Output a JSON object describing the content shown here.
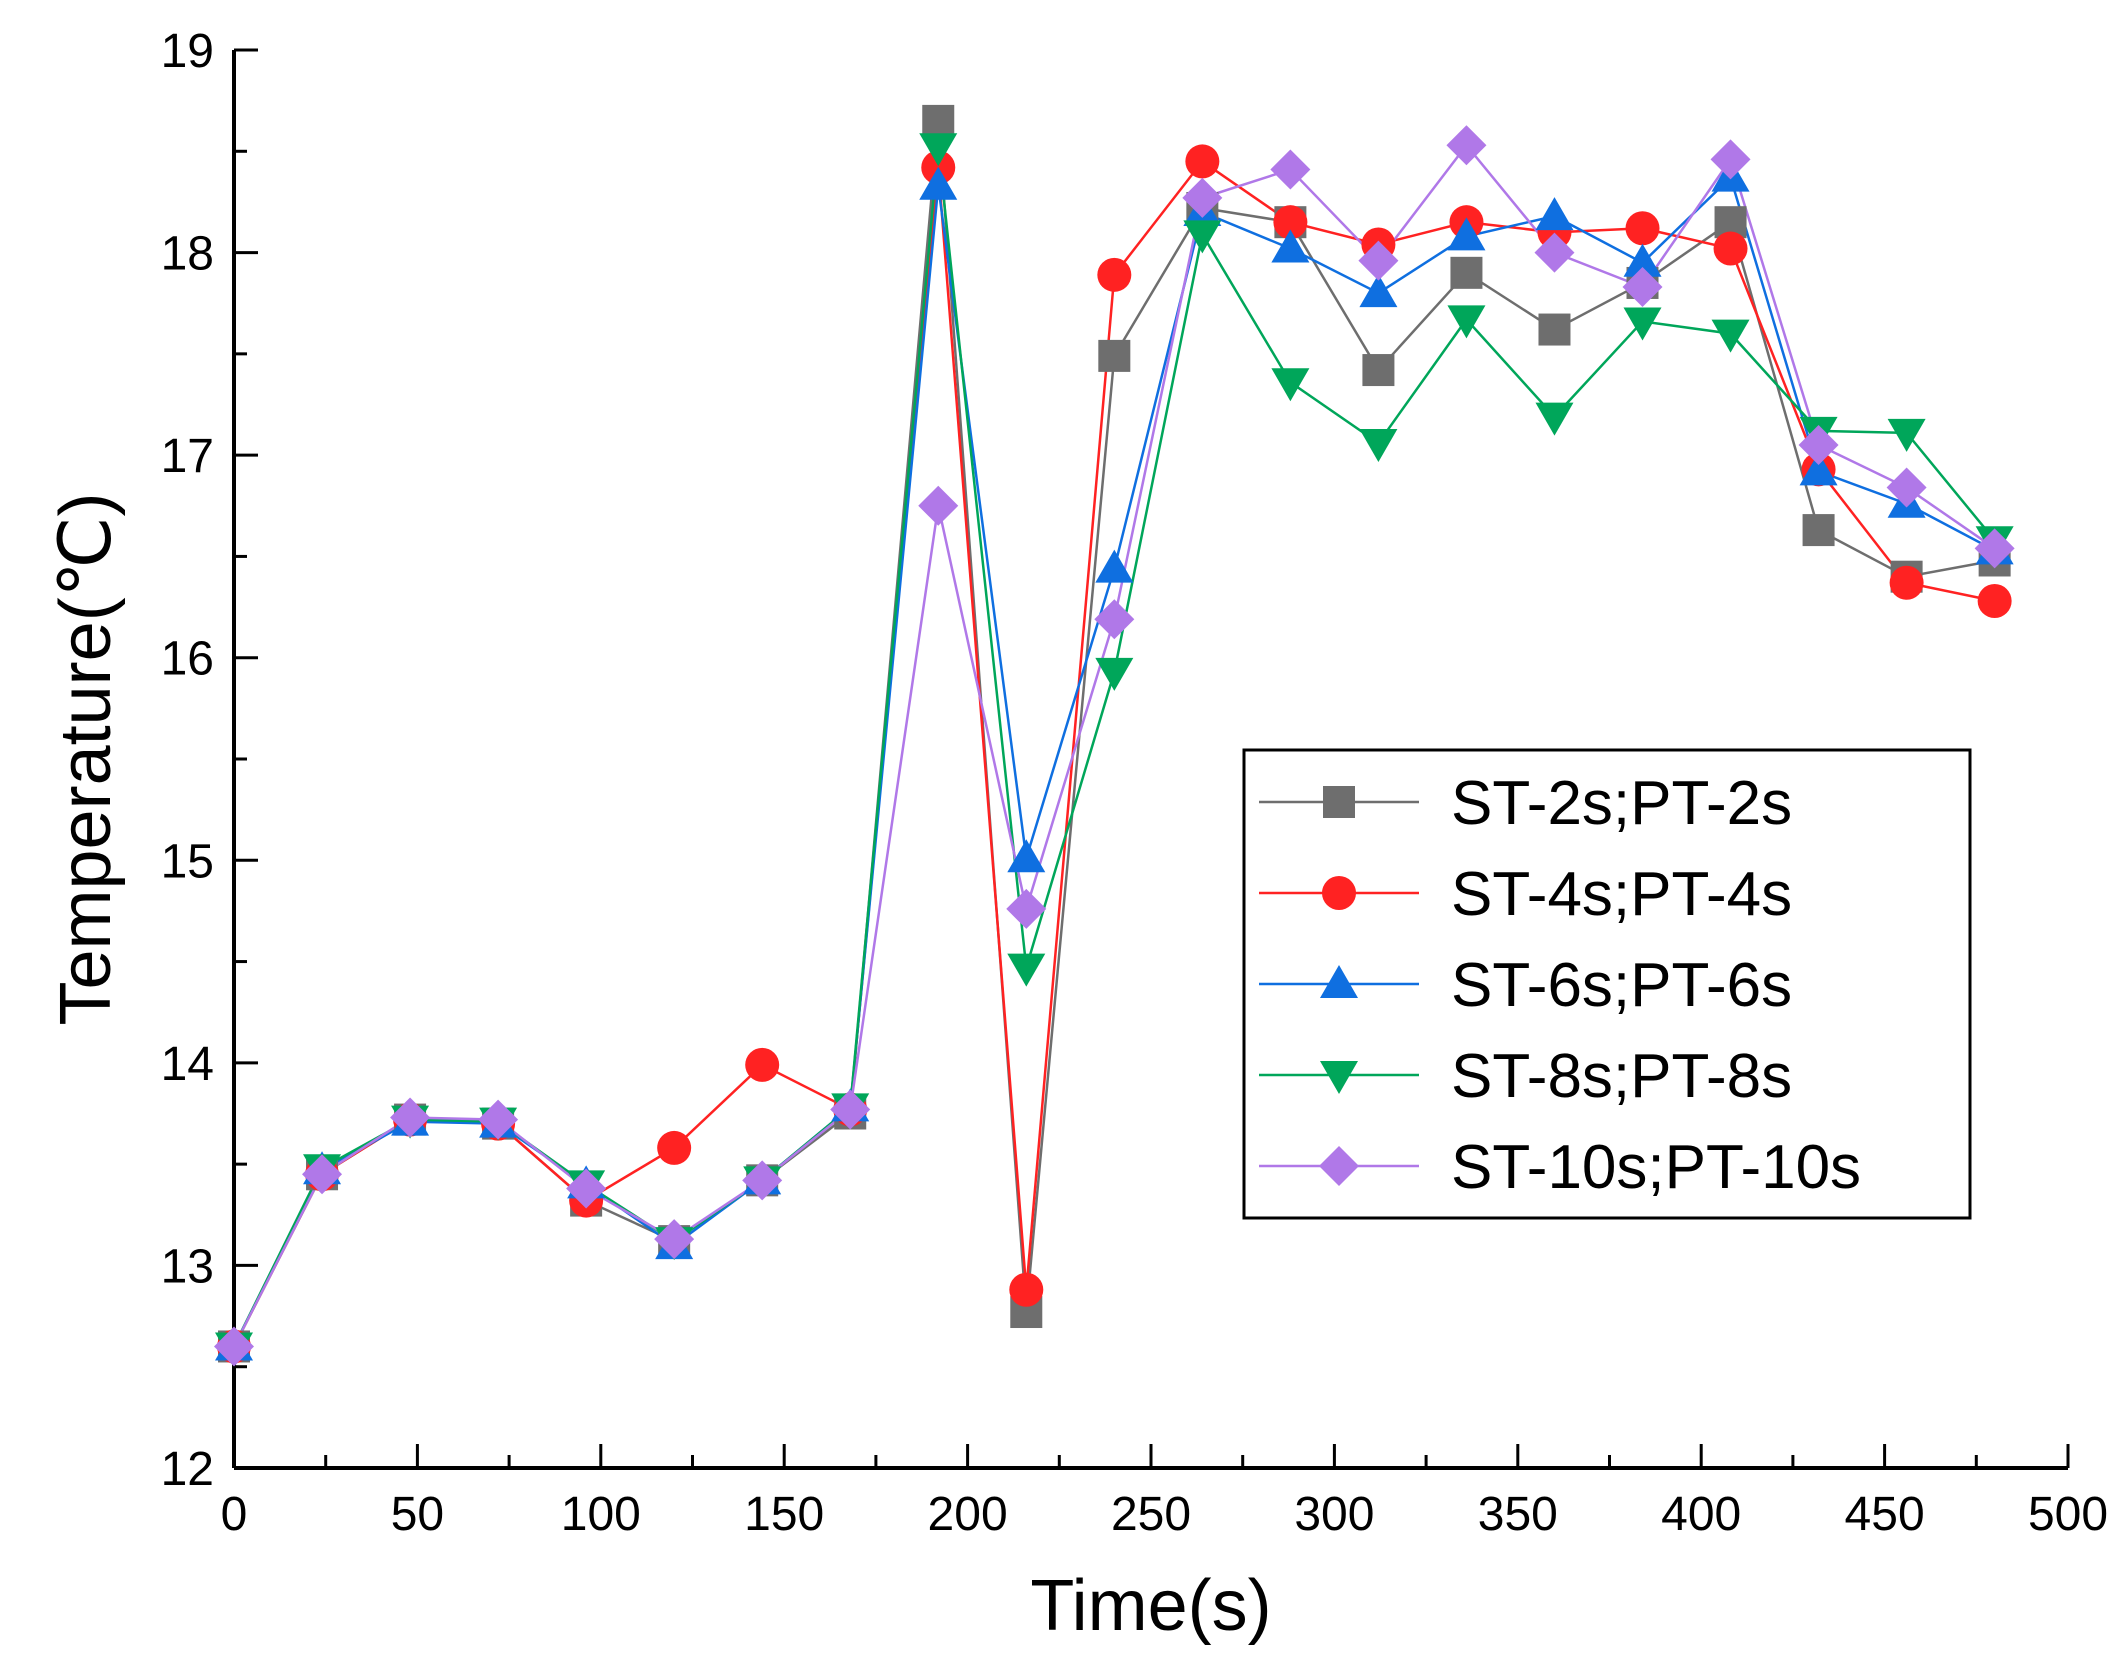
{
  "chart_data": {
    "type": "line",
    "title": "",
    "xlabel": "Time(s)",
    "ylabel": "Temperature(℃)",
    "xlim": [
      0,
      500
    ],
    "ylim": [
      12,
      19
    ],
    "xticks": [
      0,
      50,
      100,
      150,
      200,
      250,
      300,
      350,
      400,
      450,
      500
    ],
    "yticks": [
      12,
      13,
      14,
      15,
      16,
      17,
      18,
      19
    ],
    "grid": false,
    "legend_position": "right-middle",
    "x": [
      0,
      24,
      48,
      72,
      96,
      120,
      144,
      168,
      192,
      216,
      240,
      264,
      288,
      312,
      336,
      360,
      384,
      408,
      432,
      456,
      480
    ],
    "series": [
      {
        "name": "ST-2s;PT-2s",
        "color": "#6e6e6e",
        "marker": "square",
        "values": [
          12.6,
          13.45,
          13.72,
          13.7,
          13.32,
          13.12,
          13.42,
          13.75,
          18.65,
          12.77,
          17.49,
          18.22,
          18.15,
          17.42,
          17.9,
          17.62,
          17.85,
          18.15,
          16.63,
          16.4,
          16.48
        ]
      },
      {
        "name": "ST-4s;PT-4s",
        "color": "#ff2222",
        "marker": "circle",
        "values": [
          12.6,
          13.45,
          13.72,
          13.7,
          13.32,
          13.58,
          13.99,
          13.77,
          18.42,
          12.88,
          17.89,
          18.45,
          18.15,
          18.04,
          18.15,
          18.1,
          18.12,
          18.02,
          16.93,
          16.37,
          16.28
        ]
      },
      {
        "name": "ST-6s;PT-6s",
        "color": "#0f6fe0",
        "marker": "triangle-up",
        "values": [
          12.6,
          13.47,
          13.71,
          13.7,
          13.4,
          13.1,
          13.42,
          13.78,
          18.33,
          15.01,
          16.44,
          18.2,
          18.02,
          17.8,
          18.08,
          18.18,
          17.95,
          18.37,
          16.92,
          16.76,
          16.53
        ]
      },
      {
        "name": "ST-8s;PT-8s",
        "color": "#00a65a",
        "marker": "triangle-down",
        "values": [
          12.6,
          13.48,
          13.72,
          13.71,
          13.4,
          13.12,
          13.42,
          13.78,
          18.52,
          14.47,
          15.93,
          18.09,
          17.36,
          17.06,
          17.67,
          17.19,
          17.66,
          17.6,
          17.12,
          17.11,
          16.58
        ]
      },
      {
        "name": "ST-10s;PT-10s",
        "color": "#b078e8",
        "marker": "diamond",
        "values": [
          12.6,
          13.45,
          13.73,
          13.72,
          13.38,
          13.13,
          13.42,
          13.77,
          16.75,
          14.76,
          16.19,
          18.27,
          18.41,
          17.96,
          18.53,
          18.0,
          17.83,
          18.46,
          17.05,
          16.84,
          16.54
        ]
      }
    ]
  }
}
